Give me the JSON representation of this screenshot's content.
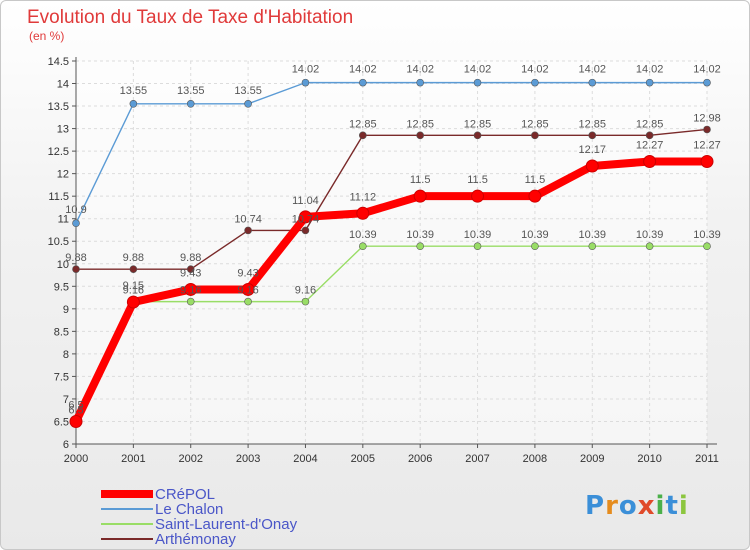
{
  "header": {
    "title": "Evolution du Taux de Taxe d'Habitation",
    "subtitle": "(en %)"
  },
  "brand": {
    "letters": [
      "P",
      "r",
      "o",
      "x",
      "i",
      "t",
      "i"
    ],
    "colors": [
      "#3b8fd8",
      "#e58c1e",
      "#3b8fd8",
      "#e04a2a",
      "#4bb04a",
      "#3b8fd8",
      "#8cc63f"
    ]
  },
  "chart_data": {
    "type": "line",
    "title": "Evolution du Taux de Taxe d'Habitation",
    "ylabel": "(en %)",
    "xlabel": "",
    "x": [
      "2000",
      "2001",
      "2002",
      "2003",
      "2004",
      "2005",
      "2006",
      "2007",
      "2008",
      "2009",
      "2010",
      "2011"
    ],
    "ylim": [
      6,
      14.5
    ],
    "yticks": [
      "6",
      "6.5",
      "7",
      "7.5",
      "8",
      "8.5",
      "9",
      "9.5",
      "10",
      "10.5",
      "11",
      "11.5",
      "12",
      "12.5",
      "13",
      "13.5",
      "14",
      "14.5"
    ],
    "grid": true,
    "legend": "bottom-left",
    "series": [
      {
        "name": "CRéPOL",
        "color": "#ff0000",
        "values": [
          6.5,
          9.15,
          9.43,
          9.43,
          11.04,
          11.12,
          11.5,
          11.5,
          11.5,
          12.17,
          12.27,
          12.27
        ],
        "labels": [
          "6.5",
          "9.15",
          "9.43",
          "9.43",
          "11.04",
          "11.12",
          "11.5",
          "11.5",
          "11.5",
          "12.17",
          "12.27",
          "12.27"
        ]
      },
      {
        "name": "Le Chalon",
        "color": "#5b9bd5",
        "values": [
          10.9,
          13.55,
          13.55,
          13.55,
          14.02,
          14.02,
          14.02,
          14.02,
          14.02,
          14.02,
          14.02,
          14.02
        ],
        "labels": [
          "10.9",
          "13.55",
          "13.55",
          "13.55",
          "14.02",
          "14.02",
          "14.02",
          "14.02",
          "14.02",
          "14.02",
          "14.02",
          "14.02"
        ]
      },
      {
        "name": "Saint-Laurent-d'Onay",
        "color": "#99dd66",
        "values": [
          6.5,
          9.16,
          9.16,
          9.16,
          9.16,
          10.39,
          10.39,
          10.39,
          10.39,
          10.39,
          10.39,
          10.39
        ],
        "labels": [
          "6.5",
          "9.16",
          "9.16",
          "9.16",
          "9.16",
          "10.39",
          "10.39",
          "10.39",
          "10.39",
          "10.39",
          "10.39",
          "10.39"
        ]
      },
      {
        "name": "Arthémonay",
        "color": "#7a2a2a",
        "values": [
          9.88,
          9.88,
          9.88,
          10.74,
          10.74,
          12.85,
          12.85,
          12.85,
          12.85,
          12.85,
          12.85,
          12.98
        ],
        "labels": [
          "9.88",
          "9.88",
          "9.88",
          "10.74",
          "10.74",
          "12.85",
          "12.85",
          "12.85",
          "12.85",
          "12.85",
          "12.85",
          "12.98"
        ]
      }
    ]
  }
}
